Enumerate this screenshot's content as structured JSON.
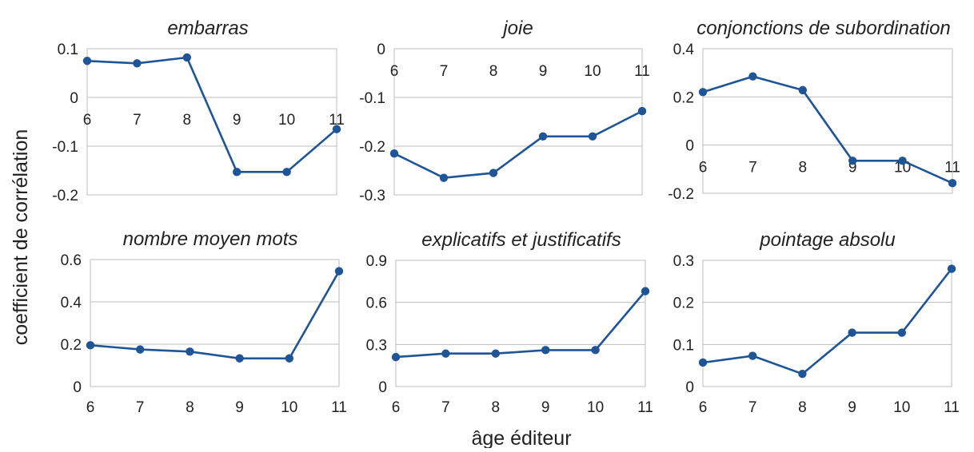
{
  "figure": {
    "ylabel": "coefficient de corrélation",
    "xlabel": "âge éditeur",
    "series_color": "#1f5596"
  },
  "chart_data": [
    {
      "type": "line",
      "title": "embarras",
      "x": [
        "6",
        "7",
        "8",
        "9",
        "10",
        "11"
      ],
      "values": [
        0.075,
        0.07,
        0.082,
        -0.153,
        -0.153,
        -0.065
      ],
      "ylim": [
        -0.2,
        0.1
      ],
      "yticks": [
        "0.1",
        "0",
        "-0.1",
        "-0.2"
      ],
      "xticks_at_zero": true,
      "grid": true
    },
    {
      "type": "line",
      "title": "joie",
      "x": [
        "6",
        "7",
        "8",
        "9",
        "10",
        "11"
      ],
      "values": [
        -0.215,
        -0.265,
        -0.255,
        -0.18,
        -0.18,
        -0.128
      ],
      "ylim": [
        -0.3,
        0
      ],
      "yticks": [
        "0",
        "-0.1",
        "-0.2",
        "-0.3"
      ],
      "xticks_at_zero": true,
      "grid": true
    },
    {
      "type": "line",
      "title": "conjonctions de subordination",
      "x": [
        "6",
        "7",
        "8",
        "9",
        "10",
        "11"
      ],
      "values": [
        0.22,
        0.285,
        0.228,
        -0.065,
        -0.065,
        -0.158
      ],
      "ylim": [
        -0.2,
        0.4
      ],
      "yticks": [
        "0.4",
        "0.2",
        "0",
        "-0.2"
      ],
      "xticks_at_zero": true,
      "grid": true
    },
    {
      "type": "line",
      "title": "nombre moyen mots",
      "x": [
        "6",
        "7",
        "8",
        "9",
        "10",
        "11"
      ],
      "values": [
        0.195,
        0.175,
        0.165,
        0.133,
        0.133,
        0.545
      ],
      "ylim": [
        0,
        0.6
      ],
      "yticks": [
        "0.6",
        "0.4",
        "0.2",
        "0"
      ],
      "xticks_at_zero": false,
      "grid": true
    },
    {
      "type": "line",
      "title": "explicatifs et justificatifs",
      "x": [
        "6",
        "7",
        "8",
        "9",
        "10",
        "11"
      ],
      "values": [
        0.21,
        0.235,
        0.235,
        0.26,
        0.26,
        0.68
      ],
      "ylim": [
        0,
        0.9
      ],
      "yticks": [
        "0.9",
        "0.6",
        "0.3",
        "0"
      ],
      "xticks_at_zero": false,
      "grid": true
    },
    {
      "type": "line",
      "title": "pointage absolu",
      "x": [
        "6",
        "7",
        "8",
        "9",
        "10",
        "11"
      ],
      "values": [
        0.057,
        0.073,
        0.03,
        0.128,
        0.128,
        0.28
      ],
      "ylim": [
        0,
        0.3
      ],
      "yticks": [
        "0.3",
        "0.2",
        "0.1",
        "0"
      ],
      "xticks_at_zero": false,
      "grid": true
    }
  ]
}
